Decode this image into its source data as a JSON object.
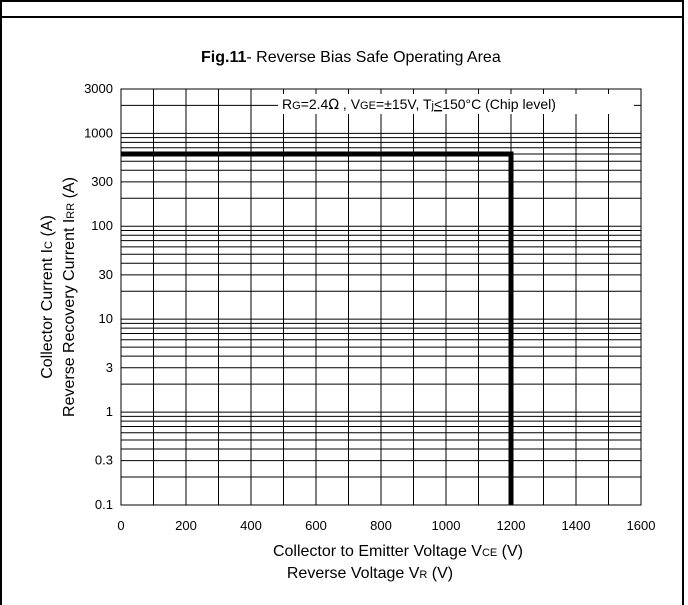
{
  "chart_data": {
    "type": "line",
    "title_prefix": "Fig.11",
    "title_rest": "- Reverse Bias Safe Operating Area",
    "annotation": {
      "r_main": "R",
      "r_sub": "G",
      "r_value": "=2.4",
      "ohm": "Ω",
      "sep": " , ",
      "v_main": "V",
      "v_sub": "GE",
      "v_value": "=±15V, T",
      "tj_sub": "j",
      "le": "<",
      "temp": "150°C (Chip level)"
    },
    "xlabel": {
      "line1_main": "Collector to Emitter Voltage  V",
      "line1_sub": "CE",
      "line1_unit": "  (V)",
      "line2_main": "Reverse Voltage  V",
      "line2_sub": "R",
      "line2_unit": "  (V)"
    },
    "ylabel": {
      "line1_main": "Collector Current  I",
      "line1_sub": "C",
      "line1_unit": " (A)",
      "line2_main": "Reverse Recovery Current  I",
      "line2_sub": "RR",
      "line2_unit": " (A)"
    },
    "xlim": [
      0,
      1600
    ],
    "ylim": [
      0.1,
      3000
    ],
    "y_scale": "log",
    "grid": true,
    "x_ticks": [
      0,
      200,
      400,
      600,
      800,
      1000,
      1200,
      1400,
      1600
    ],
    "x_tick_labels": [
      "0",
      "200",
      "400",
      "600",
      "800",
      "1000",
      "1200",
      "1400",
      "1600"
    ],
    "y_tick_values": [
      0.1,
      0.3,
      1,
      3,
      10,
      30,
      100,
      300,
      1000,
      3000
    ],
    "y_tick_labels": [
      "0.1",
      "0.3",
      "1",
      "3",
      "10",
      "30",
      "100",
      "300",
      "1000",
      "3000"
    ],
    "series": [
      {
        "x": [
          0,
          1200,
          1200
        ],
        "y": [
          600,
          600,
          0.1
        ],
        "color": "#000000"
      }
    ]
  }
}
